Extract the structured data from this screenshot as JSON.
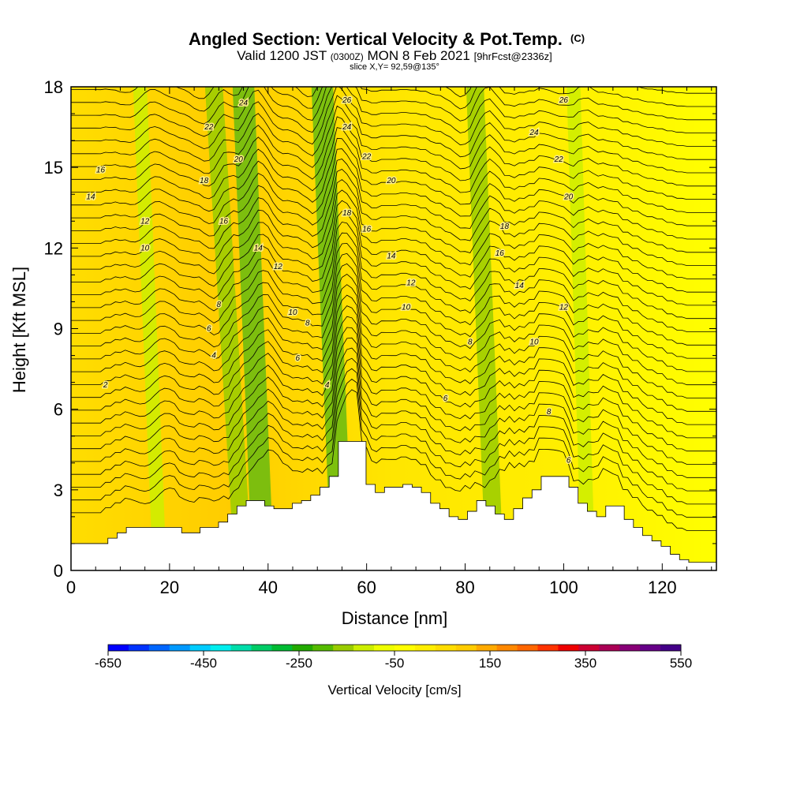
{
  "chart_data": {
    "type": "heatmap",
    "title": "Angled Section: Vertical Velocity & Pot.Temp.",
    "title_suffix": "(C)",
    "subtitle_parts": [
      "Valid 1200 JST",
      "(0300Z)",
      "MON 8 Feb 2021",
      "[9hrFcst@2336z]"
    ],
    "slice_label": "slice X,Y= 92,59@135°",
    "xlabel": "Distance [nm]",
    "ylabel": "Height [Kft MSL]",
    "xlim": [
      0,
      131
    ],
    "ylim": [
      0,
      18
    ],
    "x_ticks": [
      0,
      20,
      40,
      60,
      80,
      100,
      120
    ],
    "y_ticks": [
      0,
      3,
      6,
      9,
      12,
      15,
      18
    ],
    "colorbar": {
      "label": "Vertical Velocity [cm/s]",
      "tick_labels": [
        "-650",
        "-450",
        "-250",
        "-50",
        "150",
        "350",
        "550"
      ],
      "min": -650,
      "max": 550,
      "colors": [
        "#0000ff",
        "#0033ff",
        "#0066ff",
        "#0099ff",
        "#00ccff",
        "#00eeee",
        "#00ddaa",
        "#00cc66",
        "#00bb33",
        "#22aa00",
        "#55bb00",
        "#99cc00",
        "#ccee00",
        "#eeff00",
        "#ffff00",
        "#ffee00",
        "#ffdd00",
        "#ffcc00",
        "#ffaa00",
        "#ff8800",
        "#ff6600",
        "#ff3300",
        "#ee0000",
        "#cc0033",
        "#aa0055",
        "#880077",
        "#660088",
        "#440088"
      ]
    },
    "terrain_height_kft": [
      1.0,
      1.0,
      1.0,
      1.0,
      1.2,
      1.4,
      1.6,
      1.6,
      1.6,
      1.6,
      1.6,
      1.6,
      1.4,
      1.4,
      1.6,
      1.6,
      1.8,
      2.1,
      2.4,
      2.6,
      2.6,
      2.4,
      2.3,
      2.3,
      2.5,
      2.6,
      2.8,
      3.1,
      3.5,
      4.8,
      4.8,
      4.8,
      3.2,
      2.9,
      3.1,
      3.1,
      3.2,
      3.1,
      2.9,
      2.5,
      2.3,
      2.0,
      1.9,
      2.2,
      2.6,
      2.4,
      2.1,
      1.9,
      2.3,
      2.7,
      3.0,
      3.5,
      3.5,
      3.5,
      3.1,
      2.5,
      2.2,
      2.0,
      2.4,
      2.4,
      1.9,
      1.6,
      1.3,
      1.1,
      0.9,
      0.6,
      0.4,
      0.3,
      0.3,
      0.3,
      0.3
    ],
    "updraft_bands": [
      {
        "x_bottom": 18,
        "x_top": 14,
        "strength": "weak"
      },
      {
        "x_bottom": 35,
        "x_top": 29,
        "strength": "moderate"
      },
      {
        "x_bottom": 39,
        "x_top": 35,
        "strength": "strong"
      },
      {
        "x_bottom": 55,
        "x_top": 51,
        "strength": "strong"
      },
      {
        "x_bottom": 86,
        "x_top": 82,
        "strength": "moderate"
      },
      {
        "x_bottom": 105,
        "x_top": 102,
        "strength": "weak"
      }
    ],
    "contour_labels": [
      {
        "text": "2",
        "x": 7,
        "y": 6.9
      },
      {
        "text": "4",
        "x": 29,
        "y": 8.0
      },
      {
        "text": "6",
        "x": 28,
        "y": 9.0
      },
      {
        "text": "8",
        "x": 30,
        "y": 9.9
      },
      {
        "text": "10",
        "x": 15,
        "y": 12.0
      },
      {
        "text": "12",
        "x": 15,
        "y": 13.0
      },
      {
        "text": "14",
        "x": 4,
        "y": 13.9
      },
      {
        "text": "16",
        "x": 6,
        "y": 14.9
      },
      {
        "text": "18",
        "x": 27,
        "y": 14.5
      },
      {
        "text": "16",
        "x": 31,
        "y": 13.0
      },
      {
        "text": "20",
        "x": 34,
        "y": 15.3
      },
      {
        "text": "22",
        "x": 28,
        "y": 16.5
      },
      {
        "text": "24",
        "x": 35,
        "y": 17.4
      },
      {
        "text": "14",
        "x": 38,
        "y": 12.0
      },
      {
        "text": "12",
        "x": 42,
        "y": 11.3
      },
      {
        "text": "10",
        "x": 45,
        "y": 9.6
      },
      {
        "text": "8",
        "x": 48,
        "y": 9.2
      },
      {
        "text": "6",
        "x": 46,
        "y": 7.9
      },
      {
        "text": "4",
        "x": 52,
        "y": 6.9
      },
      {
        "text": "18",
        "x": 56,
        "y": 13.3
      },
      {
        "text": "26",
        "x": 56,
        "y": 17.5
      },
      {
        "text": "24",
        "x": 56,
        "y": 16.5
      },
      {
        "text": "22",
        "x": 60,
        "y": 15.4
      },
      {
        "text": "20",
        "x": 65,
        "y": 14.5
      },
      {
        "text": "16",
        "x": 60,
        "y": 12.7
      },
      {
        "text": "14",
        "x": 65,
        "y": 11.7
      },
      {
        "text": "12",
        "x": 69,
        "y": 10.7
      },
      {
        "text": "10",
        "x": 68,
        "y": 9.8
      },
      {
        "text": "8",
        "x": 81,
        "y": 8.5
      },
      {
        "text": "6",
        "x": 76,
        "y": 6.4
      },
      {
        "text": "18",
        "x": 88,
        "y": 12.8
      },
      {
        "text": "16",
        "x": 87,
        "y": 11.8
      },
      {
        "text": "14",
        "x": 91,
        "y": 10.6
      },
      {
        "text": "12",
        "x": 100,
        "y": 9.8
      },
      {
        "text": "10",
        "x": 94,
        "y": 8.5
      },
      {
        "text": "8",
        "x": 97,
        "y": 5.9
      },
      {
        "text": "6",
        "x": 101,
        "y": 4.1
      },
      {
        "text": "26",
        "x": 100,
        "y": 17.5
      },
      {
        "text": "24",
        "x": 94,
        "y": 16.3
      },
      {
        "text": "22",
        "x": 99,
        "y": 15.3
      },
      {
        "text": "20",
        "x": 101,
        "y": 13.9
      }
    ]
  }
}
